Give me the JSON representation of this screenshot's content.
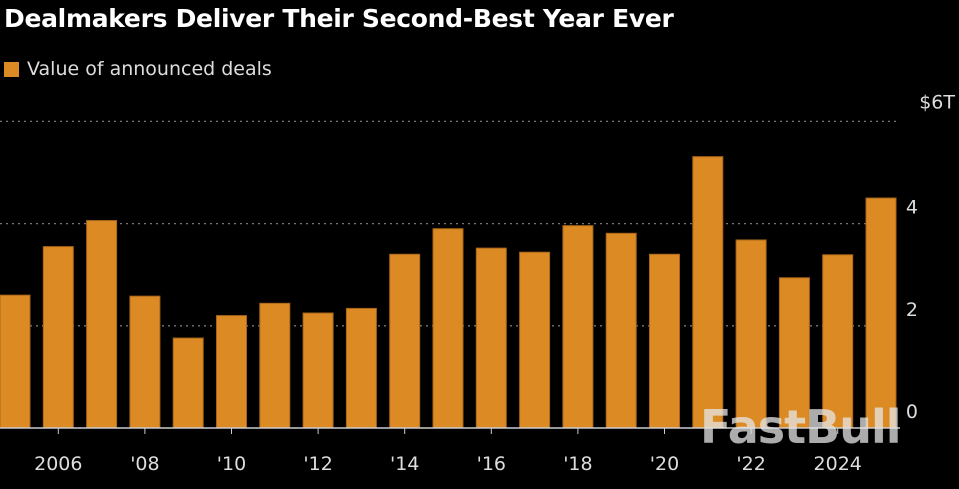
{
  "chart_data": {
    "type": "bar",
    "title": "Dealmakers Deliver Their Second-Best Year Ever",
    "legend": [
      {
        "name": "Value of announced deals",
        "color": "#dc8a24"
      }
    ],
    "legend_placement": "top-left",
    "categories": [
      2005,
      2006,
      2007,
      2008,
      2009,
      2010,
      2011,
      2012,
      2013,
      2014,
      2015,
      2016,
      2017,
      2018,
      2019,
      2020,
      2021,
      2022,
      2023,
      2024,
      2025
    ],
    "series": [
      {
        "name": "Value of announced deals",
        "values": [
          2.6,
          3.55,
          4.06,
          2.58,
          1.76,
          2.2,
          2.44,
          2.25,
          2.34,
          3.4,
          3.9,
          3.52,
          3.44,
          3.96,
          3.81,
          3.4,
          5.31,
          3.68,
          2.94,
          3.39,
          4.5
        ]
      }
    ],
    "x_tick_labels": [
      {
        "year": 2006,
        "label": "2006"
      },
      {
        "year": 2008,
        "label": "'08"
      },
      {
        "year": 2010,
        "label": "'10"
      },
      {
        "year": 2012,
        "label": "'12"
      },
      {
        "year": 2014,
        "label": "'14"
      },
      {
        "year": 2016,
        "label": "'16"
      },
      {
        "year": 2018,
        "label": "'18"
      },
      {
        "year": 2020,
        "label": "'20"
      },
      {
        "year": 2022,
        "label": "'22"
      },
      {
        "year": 2024,
        "label": "2024"
      }
    ],
    "y_ticks": [
      {
        "value": 0,
        "label": "0"
      },
      {
        "value": 2,
        "label": "2"
      },
      {
        "value": 4,
        "label": "4"
      },
      {
        "value": 6,
        "label": "$6T"
      }
    ],
    "ylim": [
      0,
      6
    ],
    "y_axis_side": "right",
    "grid": "horizontal dotted",
    "bar_color": "#dc8a24"
  },
  "watermark": "FastBull"
}
